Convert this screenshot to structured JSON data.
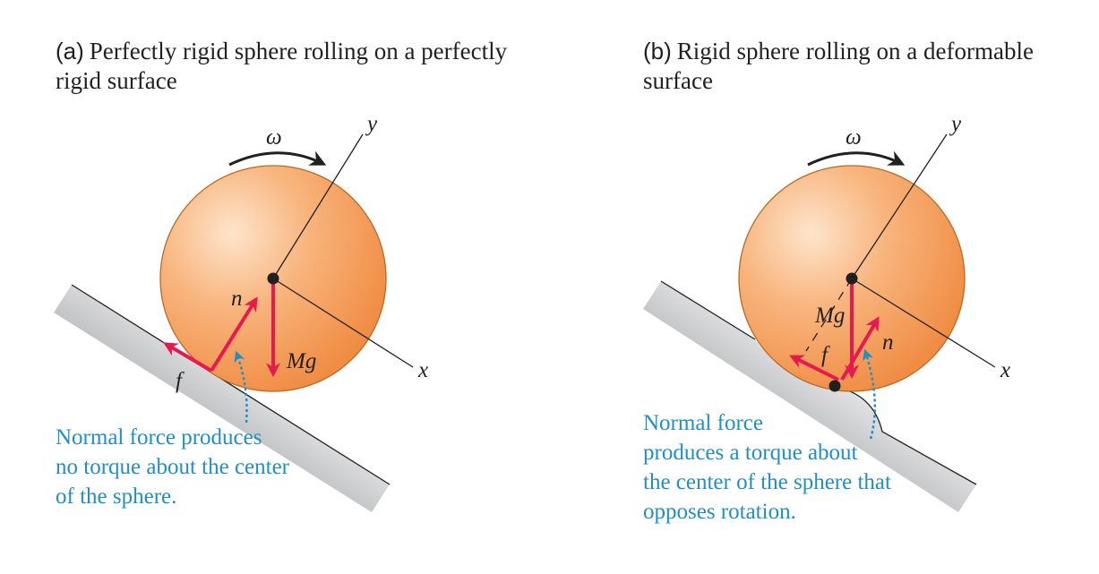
{
  "colors": {
    "force": "#e8194f",
    "note": "#1e8fc8",
    "sphere_outline": "#b86a24",
    "ink": "#231f20"
  },
  "panel_a": {
    "tag": "(a)",
    "caption_line1": "Perfectly rigid sphere rolling on a perfectly",
    "caption_line2": "rigid surface",
    "omega": "ω",
    "axis_y": "y",
    "axis_x": "x",
    "normal_label": "n",
    "weight_label": "Mg",
    "friction_label": "f",
    "note_line1": "Normal force produces",
    "note_line2": "no torque about the center",
    "note_line3": "of the sphere."
  },
  "panel_b": {
    "tag": "(b)",
    "caption_line1": "Rigid sphere rolling on a deformable",
    "caption_line2": "surface",
    "omega": "ω",
    "axis_y": "y",
    "axis_x": "x",
    "normal_label": "n",
    "weight_label": "Mg",
    "friction_label": "f",
    "note_line1": "Normal force",
    "note_line2": "produces a torque about",
    "note_line3": "the center of the sphere that",
    "note_line4": "opposes rotation."
  }
}
